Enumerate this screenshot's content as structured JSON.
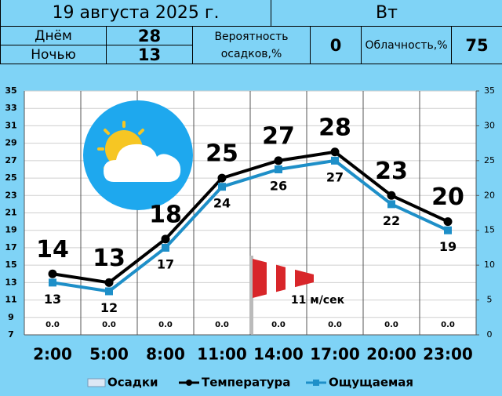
{
  "header": {
    "date": "19 августа 2025 г.",
    "weekday": "Вт",
    "day_label": "Днём",
    "day_temp": 28,
    "night_label": "Ночью",
    "night_temp": 13,
    "precip_label": "Вероятность осадков,%",
    "precip": 0,
    "cloud_label": "Облачность,%",
    "cloud": 75
  },
  "chart_data": {
    "type": "line",
    "categories": [
      "2:00",
      "5:00",
      "8:00",
      "11:00",
      "14:00",
      "17:00",
      "20:00",
      "23:00"
    ],
    "series": [
      {
        "name": "Осадки",
        "type": "bar",
        "axis": "y2",
        "color": "#dde8f5",
        "values": [
          0,
          0,
          0,
          0,
          0,
          0,
          0,
          0
        ],
        "value_labels": [
          "0.0",
          "0.0",
          "0.0",
          "0.0",
          "0.0",
          "0.0",
          "0.0",
          "0.0"
        ]
      },
      {
        "name": "Температура",
        "color": "#000000",
        "values": [
          14,
          13,
          18,
          25,
          27,
          28,
          23,
          20
        ]
      },
      {
        "name": "Ощущаемая",
        "color": "#1e8fc8",
        "values": [
          13,
          12,
          17,
          24,
          26,
          27,
          22,
          19
        ]
      }
    ],
    "ylim": [
      7,
      35
    ],
    "yticks": [
      7,
      9,
      11,
      13,
      15,
      17,
      19,
      21,
      23,
      25,
      27,
      29,
      31,
      33,
      35
    ],
    "y2lim": [
      0,
      35
    ],
    "y2ticks": [
      0,
      5,
      10,
      15,
      20,
      25,
      30,
      35
    ],
    "grid": true,
    "annotation": "11 м/сек"
  }
}
